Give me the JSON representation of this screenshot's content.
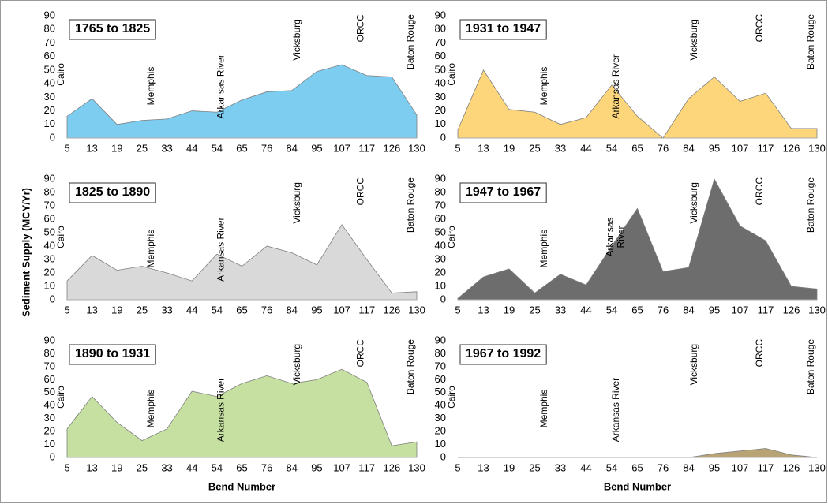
{
  "ylabel": "Sediment Supply (MCY/Yr)",
  "chart_data": [
    {
      "type": "area",
      "title": "1765 to 1825",
      "color": "#7dcdf0",
      "categories": [
        5,
        13,
        19,
        25,
        33,
        44,
        54,
        65,
        76,
        84,
        95,
        107,
        117,
        126,
        130
      ],
      "values": [
        16,
        29,
        10,
        13,
        14,
        20,
        19,
        28,
        34,
        35,
        49,
        54,
        46,
        45,
        17
      ],
      "ylim": [
        0,
        90
      ],
      "yticks": [
        0,
        10,
        20,
        30,
        40,
        50,
        60,
        70,
        80,
        90
      ],
      "annotations": [
        "Cairo",
        "Memphis",
        "Arkansas River",
        "Vicksburg",
        "ORCC",
        "Baton Rouge"
      ]
    },
    {
      "type": "area",
      "title": "1931 to 1947",
      "color": "#fdd67c",
      "categories": [
        5,
        13,
        19,
        25,
        33,
        44,
        54,
        65,
        76,
        84,
        95,
        107,
        117,
        126,
        130
      ],
      "values": [
        6,
        50,
        21,
        19,
        10,
        15,
        39,
        16,
        0,
        29,
        45,
        27,
        33,
        7,
        7
      ],
      "ylim": [
        0,
        90
      ],
      "yticks": [
        0,
        10,
        20,
        30,
        40,
        50,
        60,
        70,
        80,
        90
      ],
      "annotations": [
        "Cairo",
        "Memphis",
        "Arkansas River",
        "Vicksburg",
        "ORCC",
        "Baton Rouge"
      ]
    },
    {
      "type": "area",
      "title": "1825 to 1890",
      "color": "#d9d9d9",
      "categories": [
        5,
        13,
        19,
        25,
        33,
        44,
        54,
        65,
        76,
        84,
        95,
        107,
        117,
        126,
        130
      ],
      "values": [
        14,
        33,
        22,
        25,
        20,
        14,
        34,
        25,
        40,
        35,
        26,
        56,
        30,
        5,
        6
      ],
      "ylim": [
        0,
        90
      ],
      "yticks": [
        0,
        10,
        20,
        30,
        40,
        50,
        60,
        70,
        80,
        90
      ],
      "annotations": [
        "Cairo",
        "Memphis",
        "Arkansas River",
        "Vicksburg",
        "ORCC",
        "Baton Rouge"
      ]
    },
    {
      "type": "area",
      "title": "1947 to 1967",
      "color": "#6d6d6d",
      "categories": [
        5,
        13,
        19,
        25,
        33,
        44,
        54,
        65,
        76,
        84,
        95,
        107,
        117,
        126,
        130
      ],
      "values": [
        1,
        17,
        23,
        5,
        19,
        11,
        40,
        68,
        21,
        24,
        90,
        55,
        44,
        10,
        8
      ],
      "ylim": [
        0,
        90
      ],
      "yticks": [
        0,
        10,
        20,
        30,
        40,
        50,
        60,
        70,
        80,
        90
      ],
      "annotations": [
        "Cairo",
        "Memphis",
        "Arkansas\nRiver",
        "Vicksburg",
        "ORCC",
        "Baton Rouge"
      ]
    },
    {
      "type": "area",
      "title": "1890 to 1931",
      "color": "#c5e0a0",
      "categories": [
        5,
        13,
        19,
        25,
        33,
        44,
        54,
        65,
        76,
        84,
        95,
        107,
        117,
        126,
        130
      ],
      "values": [
        22,
        47,
        27,
        13,
        22,
        51,
        47,
        57,
        63,
        57,
        60,
        68,
        58,
        9,
        12
      ],
      "ylim": [
        0,
        90
      ],
      "yticks": [
        0,
        10,
        20,
        30,
        40,
        50,
        60,
        70,
        80,
        90
      ],
      "xlabel": "Bend Number",
      "annotations": [
        "Cairo",
        "Memphis",
        "Arkansas River",
        "Vicksburg",
        "ORCC",
        "Baton Rouge"
      ]
    },
    {
      "type": "area",
      "title": "1967 to 1992",
      "color": "#b8a374",
      "categories": [
        5,
        13,
        19,
        25,
        33,
        44,
        54,
        65,
        76,
        84,
        95,
        107,
        117,
        126,
        130
      ],
      "values": [
        null,
        null,
        null,
        null,
        null,
        null,
        null,
        null,
        null,
        0,
        3,
        5,
        7,
        2,
        0
      ],
      "ylim": [
        0,
        90
      ],
      "yticks": [
        0,
        10,
        20,
        30,
        40,
        50,
        60,
        70,
        80,
        90
      ],
      "xlabel": "Bend Number",
      "annotations": [
        "Cairo",
        "Memphis",
        "Arkansas River",
        "Vicksburg",
        "ORCC",
        "Baton Rouge"
      ]
    }
  ]
}
